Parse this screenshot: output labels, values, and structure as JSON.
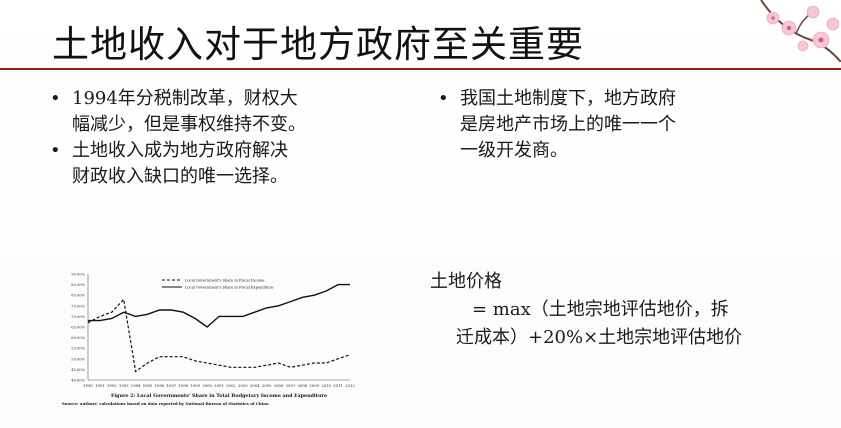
{
  "title": "土地收入对于地方政府至关重要",
  "left_bullets": [
    {
      "line1": "1994年分税制改革，财权大",
      "line2": "幅减少，但是事权维持不变。"
    },
    {
      "line1": "土地收入成为地方政府解决",
      "line2": "财政收入缺口的唯一选择。"
    }
  ],
  "right_bullets": [
    {
      "line1": "我国土地制度下，地方政府",
      "line2": "是房地产市场上的唯一一个",
      "line3": "一级开发商。"
    }
  ],
  "formula": {
    "label": "土地价格",
    "line2": "= max（土地宗地评估地价，拆",
    "line3": "迁成本）+20%×土地宗地评估地价"
  },
  "chart_data": {
    "type": "line",
    "title": "Figure 2: Local Governments' Share in Total Budgetary Income and Expenditure",
    "source": "Source: authors' calculations based on data reported by National Bureau of Statistics of China",
    "x": [
      "1990",
      "1991",
      "1992",
      "1993",
      "1994",
      "1995",
      "1996",
      "1997",
      "1998",
      "1999",
      "2000",
      "2001",
      "2002",
      "2003",
      "2004",
      "2005",
      "2006",
      "2007",
      "2008",
      "2009",
      "2010",
      "2011",
      "2012"
    ],
    "y_ticks": [
      "90.00%",
      "85.00%",
      "80.00%",
      "75.00%",
      "70.00%",
      "65.00%",
      "60.00%",
      "55.00%",
      "50.00%",
      "45.00%",
      "40.00%"
    ],
    "ylim": [
      40,
      90
    ],
    "series": [
      {
        "name": "Local Government's Share in Fiscal Income",
        "style": "dashed",
        "values": [
          67,
          70,
          72,
          78,
          44,
          48,
          51,
          51,
          51,
          49,
          48,
          47,
          46,
          46,
          46,
          47,
          48,
          46,
          47,
          48,
          48,
          50,
          52
        ]
      },
      {
        "name": "Local Government's Share in Fiscal Expenditure",
        "style": "solid",
        "values": [
          68,
          68,
          69,
          72,
          70,
          71,
          73,
          73,
          72,
          69,
          65,
          70,
          70,
          70,
          72,
          74,
          75,
          77,
          79,
          80,
          82,
          85,
          85
        ]
      }
    ]
  }
}
